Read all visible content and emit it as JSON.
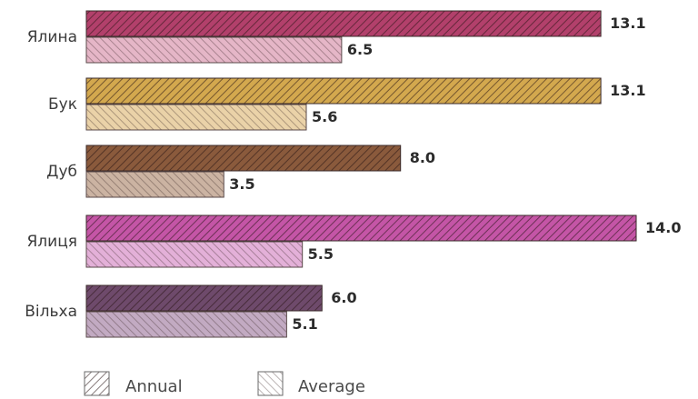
{
  "chart_data": {
    "type": "bar",
    "orientation": "horizontal",
    "categories": [
      "Ялина",
      "Бук",
      "Дуб",
      "Ялиця",
      "Вільха"
    ],
    "series": [
      {
        "name": "Annual",
        "values": [
          13.1,
          13.1,
          8.0,
          14.0,
          6.0
        ]
      },
      {
        "name": "Average",
        "values": [
          6.5,
          5.6,
          3.5,
          5.5,
          5.1
        ]
      }
    ],
    "value_labels": {
      "annual": [
        "13.1",
        "13.1",
        "8.0",
        "14.0",
        "6.0"
      ],
      "average": [
        "6.5",
        "5.6",
        "3.5",
        "5.5",
        "5.1"
      ]
    },
    "category_colors": {
      "annual": [
        "#b2406b",
        "#d3a84e",
        "#8a5a3c",
        "#c455a6",
        "#6e4a6b"
      ],
      "average": [
        "#e5b6c7",
        "#ead2a8",
        "#cbb3a2",
        "#e3b0d8",
        "#c2aac2"
      ]
    },
    "xlim": [
      0,
      14
    ],
    "grid": false,
    "legend": {
      "position": "bottom-left",
      "items": [
        {
          "label": "Annual",
          "pattern": "forward-hatch"
        },
        {
          "label": "Average",
          "pattern": "back-hatch"
        }
      ]
    }
  }
}
